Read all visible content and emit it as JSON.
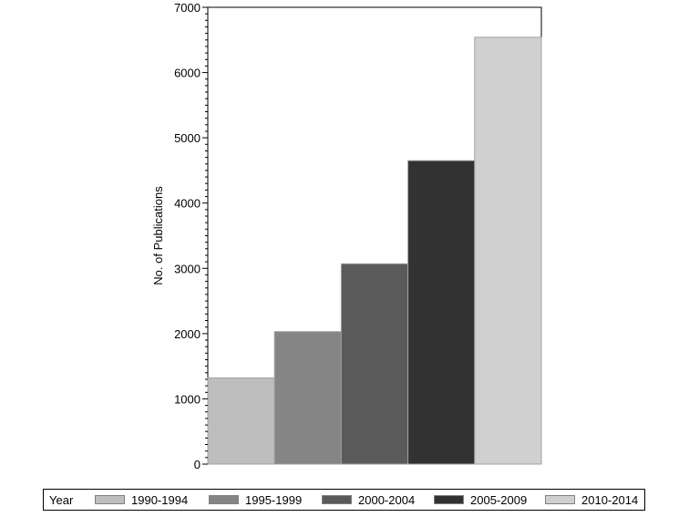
{
  "chart_data": {
    "type": "bar",
    "title": "",
    "xlabel": "",
    "ylabel": "No. of Publications",
    "ylim": [
      0,
      7000
    ],
    "yticks": [
      0,
      1000,
      2000,
      3000,
      4000,
      5000,
      6000,
      7000
    ],
    "grid": false,
    "legend_placement": "bottom",
    "legend_title": "Year",
    "series": [
      {
        "name": "1990-1994",
        "value": 1320,
        "color": "#bebebe"
      },
      {
        "name": "1995-1999",
        "value": 2030,
        "color": "#858585"
      },
      {
        "name": "2000-2004",
        "value": 3070,
        "color": "#5a5a5a"
      },
      {
        "name": "2005-2009",
        "value": 4650,
        "color": "#323232"
      },
      {
        "name": "2010-2014",
        "value": 6540,
        "color": "#d0d0d0"
      }
    ]
  }
}
